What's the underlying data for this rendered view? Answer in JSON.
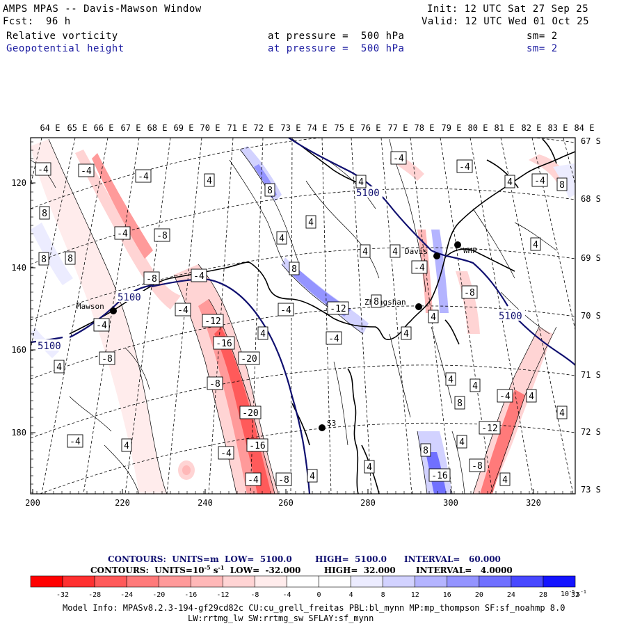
{
  "header": {
    "title": "AMPS MPAS -- Davis-Mawson Window",
    "fcst_label": "Fcst:",
    "fcst_value": "96 h",
    "init": "Init: 12 UTC Sat 27 Sep 25",
    "valid": "Valid: 12 UTC Wed 01 Oct 25",
    "field1": "Relative vorticity",
    "field2": "Geopotential height",
    "pressure1": "at pressure =  500 hPa",
    "pressure2": "at pressure =  500 hPa",
    "sm1": "sm= 2",
    "sm2": "sm= 2"
  },
  "axes": {
    "top_lon": [
      "64 E",
      "65 E",
      "66 E",
      "67 E",
      "68 E",
      "69 E",
      "70 E",
      "71 E",
      "72 E",
      "73 E",
      "74 E",
      "75 E",
      "76 E",
      "77 E",
      "78 E",
      "79 E",
      "80 E",
      "81 E",
      "82 E",
      "83 E",
      "84 E"
    ],
    "right_lat": [
      "67 S",
      "68 S",
      "69 S",
      "70 S",
      "71 S",
      "72 S",
      "73 S"
    ],
    "bottom_x": [
      "200",
      "220",
      "240",
      "260",
      "280",
      "300",
      "320"
    ],
    "left_y": [
      "120",
      "140",
      "160",
      "180"
    ]
  },
  "stations": {
    "mawson": "Mawson",
    "davis": "Davis",
    "whp": "WHP",
    "zhongshan": "Zhongshan",
    "s3": "S3"
  },
  "height_labels": [
    "5100",
    "5100",
    "5100",
    "5100"
  ],
  "vort_labels": [
    "-4",
    "-4",
    "-4",
    "4",
    "8",
    "4",
    "-4",
    "-4",
    "4",
    "-4",
    "8",
    "4",
    "4",
    "4",
    "-4",
    "8",
    "8",
    "4",
    "-4",
    "-8",
    "8",
    "4",
    "-8",
    "4",
    "-12",
    "-12",
    "-4",
    "-16",
    "-20",
    "-16",
    "-8",
    "-4",
    "-8",
    "4",
    "-4",
    "4",
    "4",
    "-4",
    "4",
    "4",
    "8",
    "4",
    "4",
    "4",
    "-12",
    "4",
    "-8",
    "-16",
    "4",
    "4",
    "-8",
    "4",
    "-8",
    "4",
    "4",
    "-4"
  ],
  "legend": {
    "contour1": "CONTOURS:  UNITS=m  LOW=  5100.0        HIGH=  5100.0      INTERVAL=   60.000",
    "contour2": "CONTOURS:  UNITS=10",
    "contour2_unit_exp": "-5",
    "contour2_rest": " s",
    "contour2_neg": "-1",
    "contour2_tail": "  LOW=  -32.000        HIGH=  32.000       INTERVAL=   4.0000",
    "ticks": [
      "-32",
      "-28",
      "-24",
      "-20",
      "-16",
      "-12",
      "-8",
      "-4",
      "0",
      "4",
      "8",
      "12",
      "16",
      "20",
      "24",
      "28",
      "32"
    ],
    "unit_base": "10",
    "unit_exp": "-5",
    "unit_s": "s",
    "unit_sexp": "-1",
    "colors": [
      "#ff0000",
      "#ff3030",
      "#ff5a5a",
      "#ff7a7a",
      "#ff9a9a",
      "#ffb8b8",
      "#ffd4d4",
      "#ffecec",
      "#ffffff",
      "#ffffff",
      "#ececff",
      "#d2d2ff",
      "#b4b4ff",
      "#9494ff",
      "#7070ff",
      "#4848ff",
      "#1414ff"
    ]
  },
  "model_info": {
    "line1": "Model Info: MPASv8.2.3-194-gf29cd82c CU:cu_grell_freitas PBL:bl_mynn MP:mp_thompson SF:sf_noahmp 8.0",
    "line2": "LW:rrtmg_lw SW:rrtmg_sw SFLAY:sf_mynn"
  }
}
